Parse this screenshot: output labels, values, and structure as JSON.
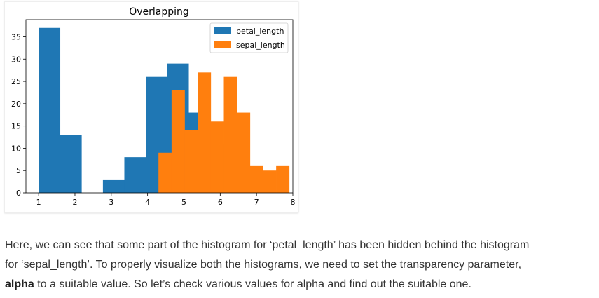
{
  "chart_data": {
    "type": "histogram",
    "title": "Overlapping",
    "xlim": [
      0.65,
      8.0
    ],
    "ylim": [
      0,
      38.85
    ],
    "xticks": [
      1,
      2,
      3,
      4,
      5,
      6,
      7,
      8
    ],
    "yticks": [
      0,
      5,
      10,
      15,
      20,
      25,
      30,
      35
    ],
    "legend_position": "top-right",
    "series": [
      {
        "name": "petal_length",
        "color": "#1f77b4",
        "bin_edges": [
          1.0,
          1.59,
          2.18,
          2.77,
          3.36,
          3.95,
          4.54,
          5.13,
          5.72,
          6.31,
          6.9
        ],
        "counts": [
          37,
          13,
          0,
          3,
          8,
          26,
          29,
          18,
          11,
          5
        ]
      },
      {
        "name": "sepal_length",
        "color": "#ff7f0e",
        "bin_edges": [
          4.3,
          4.66,
          5.02,
          5.38,
          5.74,
          6.1,
          6.46,
          6.82,
          7.18,
          7.54,
          7.9
        ],
        "counts": [
          9,
          23,
          14,
          27,
          16,
          26,
          18,
          6,
          5,
          6
        ]
      }
    ]
  },
  "text": {
    "line1": "Here, we can see that some part of the histogram for ‘petal_length’ has been hidden behind the histogram",
    "line2": "for ‘sepal_length’. To properly visualize both the histograms, we need to set the transparency parameter,",
    "line3_bold": "alpha",
    "line3_rest": " to a suitable value. So let’s check various values for alpha and find out the suitable one."
  }
}
